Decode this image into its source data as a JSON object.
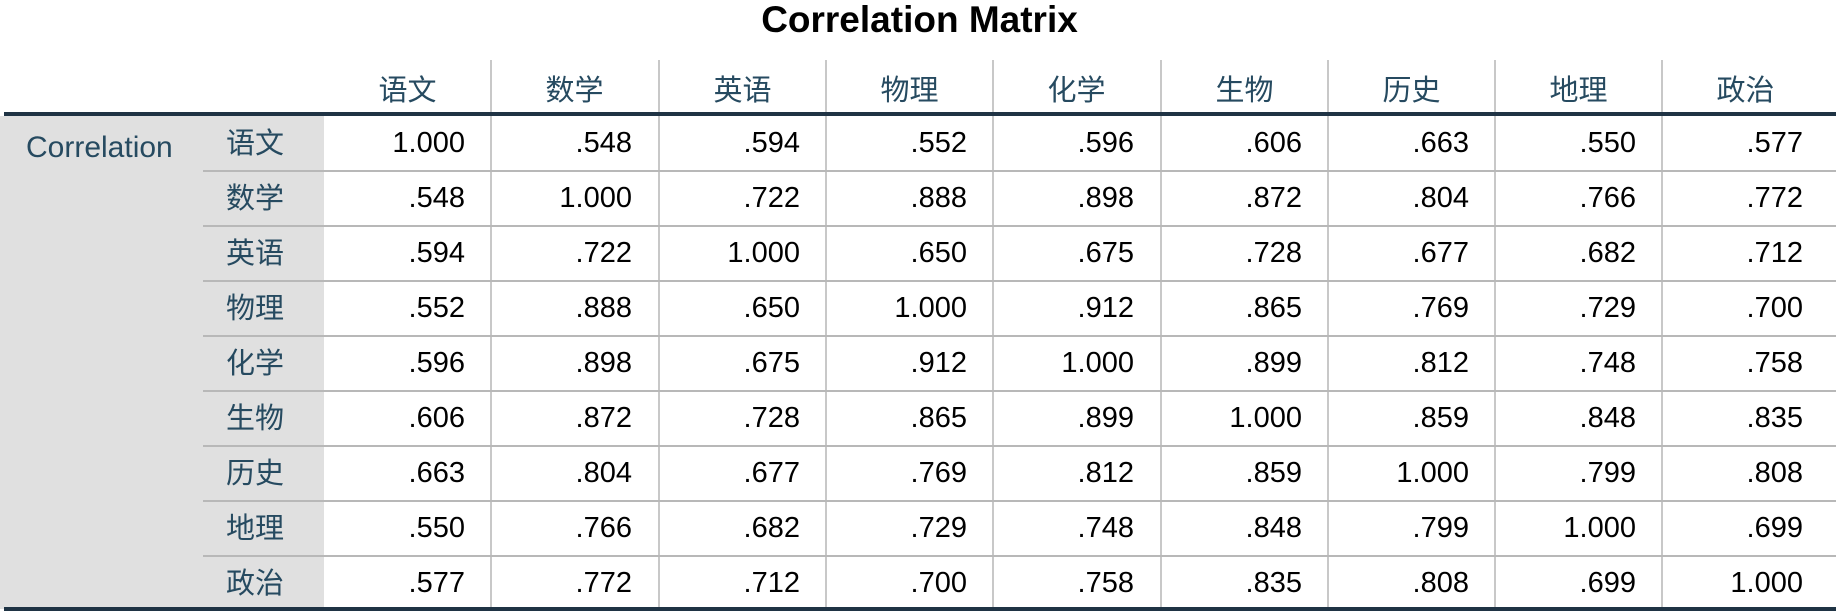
{
  "title": "Correlation Matrix",
  "stub_label": "Correlation",
  "columns": [
    "语文",
    "数学",
    "英语",
    "物理",
    "化学",
    "生物",
    "历史",
    "地理",
    "政治"
  ],
  "rows": [
    {
      "label": "语文",
      "values": [
        "1.000",
        ".548",
        ".594",
        ".552",
        ".596",
        ".606",
        ".663",
        ".550",
        ".577"
      ]
    },
    {
      "label": "数学",
      "values": [
        ".548",
        "1.000",
        ".722",
        ".888",
        ".898",
        ".872",
        ".804",
        ".766",
        ".772"
      ]
    },
    {
      "label": "英语",
      "values": [
        ".594",
        ".722",
        "1.000",
        ".650",
        ".675",
        ".728",
        ".677",
        ".682",
        ".712"
      ]
    },
    {
      "label": "物理",
      "values": [
        ".552",
        ".888",
        ".650",
        "1.000",
        ".912",
        ".865",
        ".769",
        ".729",
        ".700"
      ]
    },
    {
      "label": "化学",
      "values": [
        ".596",
        ".898",
        ".675",
        ".912",
        "1.000",
        ".899",
        ".812",
        ".748",
        ".758"
      ]
    },
    {
      "label": "生物",
      "values": [
        ".606",
        ".872",
        ".728",
        ".865",
        ".899",
        "1.000",
        ".859",
        ".848",
        ".835"
      ]
    },
    {
      "label": "历史",
      "values": [
        ".663",
        ".804",
        ".677",
        ".769",
        ".812",
        ".859",
        "1.000",
        ".799",
        ".808"
      ]
    },
    {
      "label": "地理",
      "values": [
        ".550",
        ".766",
        ".682",
        ".729",
        ".748",
        ".848",
        ".799",
        "1.000",
        ".699"
      ]
    },
    {
      "label": "政治",
      "values": [
        ".577",
        ".772",
        ".712",
        ".700",
        ".758",
        ".835",
        ".808",
        ".699",
        "1.000"
      ]
    }
  ],
  "colors": {
    "header_text": "#264a60",
    "stub_band": "#e0e0e0",
    "rule": "#1f3344"
  }
}
